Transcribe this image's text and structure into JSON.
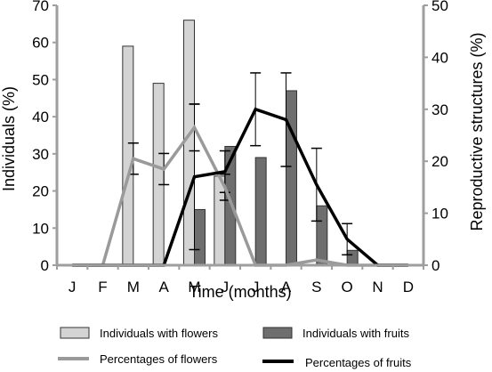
{
  "chart_data": {
    "type": "bar+line",
    "categories": [
      "J",
      "F",
      "M",
      "A",
      "M",
      "J",
      "J",
      "A",
      "S",
      "O",
      "N",
      "D"
    ],
    "xlabel": "Time (months)",
    "ylabel_left": "Individuals (%)",
    "ylabel_right": "Reproductive structures (%)",
    "ylim_left": [
      0,
      70
    ],
    "ylim_right": [
      0,
      50
    ],
    "yticks_left": [
      "0",
      "10",
      "20",
      "30",
      "40",
      "50",
      "60",
      "70"
    ],
    "yticks_right": [
      "0",
      "10",
      "20",
      "30",
      "40",
      "50"
    ],
    "bars": [
      {
        "name": "Individuals with flowers",
        "axis": "left",
        "color": "#d4d4d4",
        "values": [
          0,
          0,
          59,
          49,
          66,
          24,
          0,
          0,
          0,
          0,
          0,
          0
        ]
      },
      {
        "name": "Individuals with fruits",
        "axis": "left",
        "color": "#6e6e6e",
        "values": [
          0,
          0,
          0,
          0,
          15,
          32,
          29,
          47,
          16,
          4,
          0,
          0
        ]
      }
    ],
    "lines": [
      {
        "name": "Percentages of flowers",
        "axis": "right",
        "color": "#9a9a9a",
        "values": [
          0,
          0,
          20.5,
          18.5,
          26.5,
          15,
          0,
          0,
          1,
          0,
          0,
          0
        ],
        "error": [
          0,
          0,
          3,
          3,
          4.5,
          2.5,
          0,
          0,
          0,
          0,
          0,
          0
        ]
      },
      {
        "name": "Percentages of fruits",
        "axis": "right",
        "color": "#000000",
        "values": [
          0,
          0,
          0,
          0,
          17,
          18,
          30,
          28,
          15.5,
          5,
          0,
          0
        ],
        "error": [
          0,
          0,
          0,
          0,
          14,
          4,
          7,
          9,
          7,
          3,
          0,
          0
        ]
      }
    ],
    "legend": {
      "position": "bottom",
      "flowers_bar": "Individuals with flowers",
      "fruits_bar": "Individuals with fruits",
      "flowers_line": "Percentages of flowers",
      "fruits_line": "Percentages of fruits"
    },
    "grid": false
  }
}
